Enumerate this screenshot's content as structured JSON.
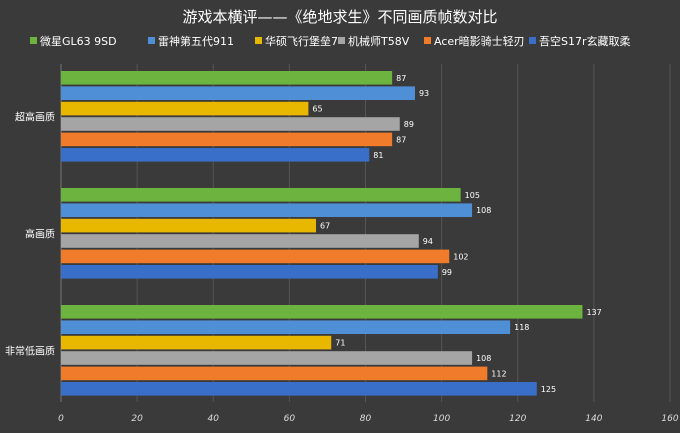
{
  "chart_data": {
    "type": "bar",
    "orientation": "horizontal",
    "title": "游戏本横评——《绝地求生》不同画质帧数对比",
    "categories": [
      "超高画质",
      "高画质",
      "非常低画质"
    ],
    "series": [
      {
        "name": "微星GL63 9SD",
        "color": "#6cb33f",
        "values": [
          87,
          105,
          137
        ]
      },
      {
        "name": "雷神第五代911",
        "color": "#4f8fd6",
        "values": [
          93,
          108,
          118
        ]
      },
      {
        "name": "华硕飞行堡垒7",
        "color": "#e8b800",
        "values": [
          65,
          67,
          71
        ]
      },
      {
        "name": "机械师T58V",
        "color": "#a5a5a5",
        "values": [
          89,
          94,
          108
        ]
      },
      {
        "name": "Acer暗影骑士轻刃",
        "color": "#f07b2a",
        "values": [
          87,
          102,
          112
        ]
      },
      {
        "name": "吾空S17r玄藏取柔",
        "color": "#3a6fc9",
        "values": [
          81,
          99,
          125
        ]
      }
    ],
    "xlim": [
      0,
      160
    ],
    "xticks": [
      0,
      20,
      40,
      60,
      80,
      100,
      120,
      140,
      160
    ],
    "grid": true,
    "legend": "top"
  }
}
